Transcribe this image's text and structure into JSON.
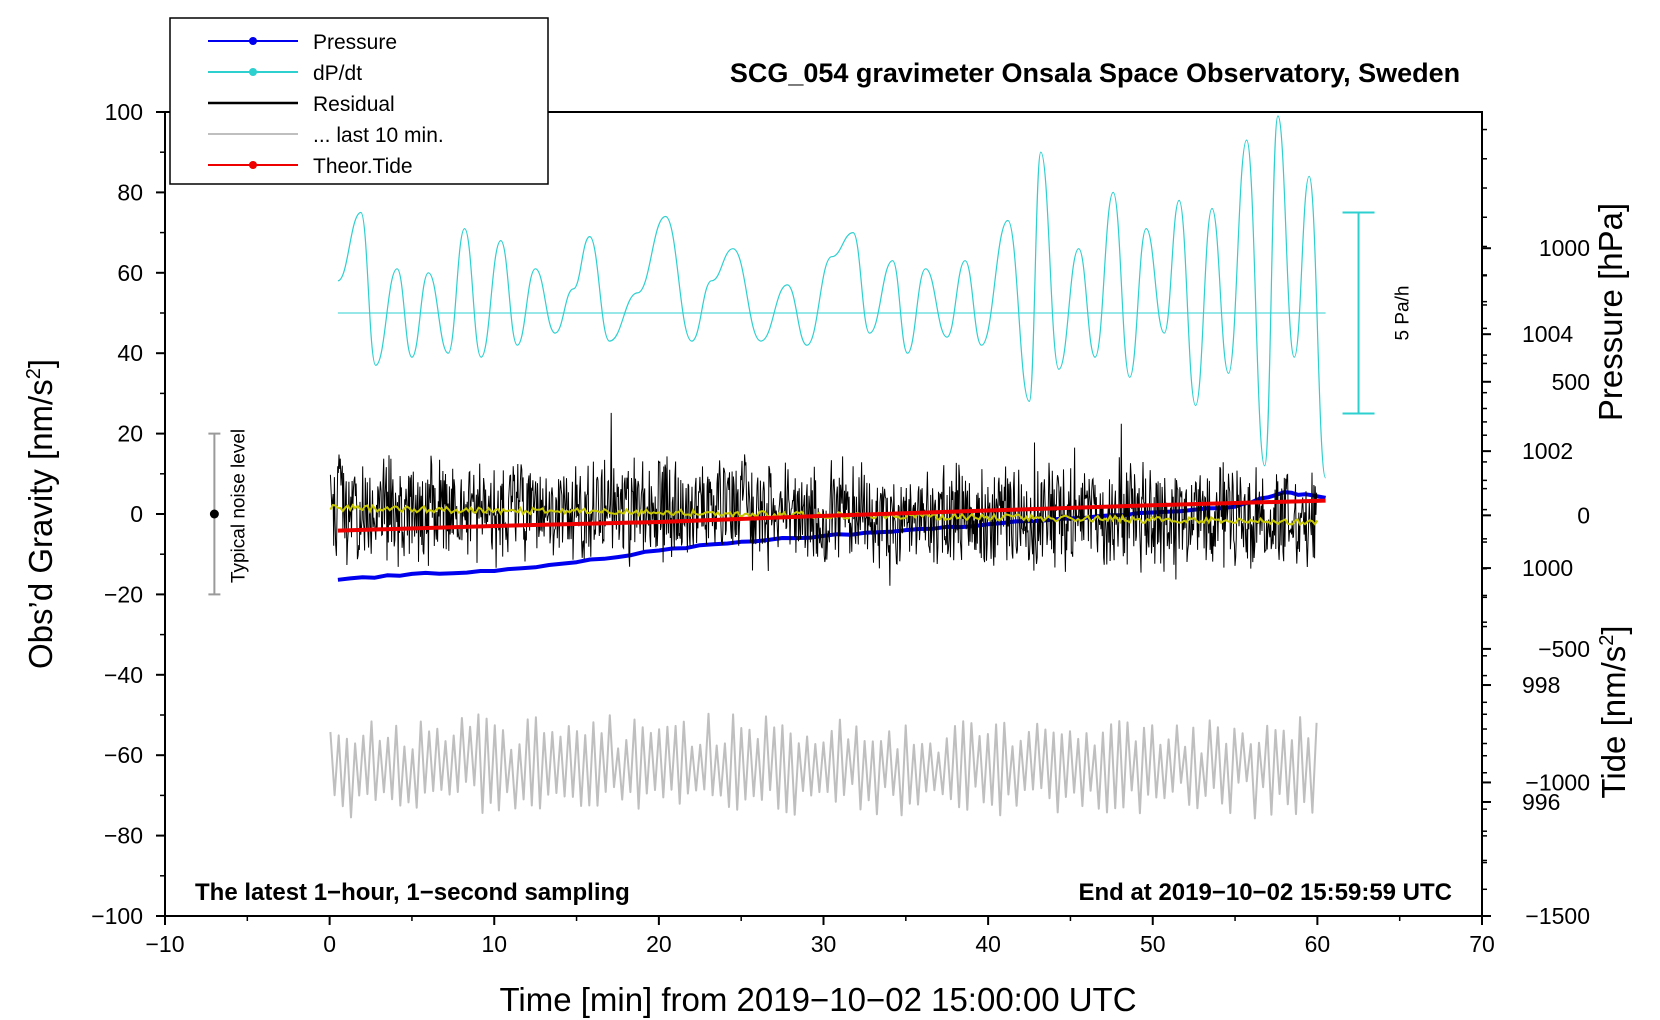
{
  "chart_data": {
    "type": "line",
    "title": "SCG_054 gravimeter Onsala Space Observatory, Sweden",
    "xlabel": "Time [min] from 2019−10−02 15:00:00 UTC",
    "ylabel_left_main": "Obs’d Gravity [nm/s",
    "ylabel_left_sup": "2",
    "ylabel_left_end": "]",
    "ylabel_right_pressure": "Pressure [hPa]",
    "ylabel_right_tide_main": "Tide [nm/s",
    "ylabel_right_tide_sup": "2",
    "ylabel_right_tide_end": "]",
    "xlim": [
      -10,
      70
    ],
    "ylim_gravity": [
      -100,
      100
    ],
    "ylim_pressure": [
      994.05,
      1007.8
    ],
    "ylim_tide": [
      -1500,
      1510
    ],
    "x_ticks": [
      -10,
      0,
      10,
      20,
      30,
      40,
      50,
      60,
      70
    ],
    "x_tick_labels": [
      "−10",
      "0",
      "10",
      "20",
      "30",
      "40",
      "50",
      "60",
      "70"
    ],
    "y_ticks_gravity": [
      -100,
      -80,
      -60,
      -40,
      -20,
      0,
      20,
      40,
      60,
      80,
      100
    ],
    "y_tick_labels_gravity": [
      "−100",
      "−80",
      "−60",
      "−40",
      "−20",
      "0",
      "20",
      "40",
      "60",
      "80",
      "100"
    ],
    "y_ticks_pressure": [
      996,
      998,
      1000,
      1002,
      1004
    ],
    "y_tick_labels_pressure": [
      "996",
      "998",
      "1000",
      "1002",
      "1004"
    ],
    "y_ticks_tide": [
      -1500,
      -1000,
      -500,
      0,
      500,
      1000
    ],
    "y_tick_labels_tide": [
      "−1500",
      "−1000",
      "−500",
      "0",
      "500",
      "1000"
    ],
    "series": [
      {
        "name": "Pressure",
        "color": "#0000ee",
        "unit": "hPa",
        "x": [
          0.5,
          5,
          10,
          15,
          20,
          25,
          30,
          35,
          40,
          45,
          50,
          55,
          58,
          60.5
        ],
        "values": [
          999.8,
          999.9,
          999.95,
          1000.1,
          1000.3,
          1000.45,
          1000.55,
          1000.65,
          1000.75,
          1000.85,
          1000.95,
          1001.05,
          1001.3,
          1001.2
        ]
      },
      {
        "name": "dP/dt",
        "color": "#2ecfcf",
        "unit": "gravity-axis units (baseline 50, scale bar 5 Pa/h)",
        "x": [
          0.5,
          1.9,
          2.8,
          4.1,
          5.0,
          6.0,
          7.2,
          8.2,
          9.2,
          10.4,
          11.4,
          12.5,
          13.7,
          14.8,
          15.8,
          17.0,
          18.7,
          20.4,
          22.0,
          23.2,
          24.5,
          26.2,
          27.8,
          29.0,
          30.5,
          31.8,
          32.8,
          34.2,
          35.1,
          36.2,
          37.5,
          38.6,
          39.6,
          41.2,
          42.5,
          43.2,
          44.3,
          45.5,
          46.5,
          47.6,
          48.6,
          49.6,
          50.7,
          51.6,
          52.6,
          53.6,
          54.6,
          55.7,
          56.8,
          57.6,
          58.6,
          59.5,
          60.5
        ],
        "values": [
          58,
          75,
          37,
          61,
          39,
          60,
          40,
          71,
          39,
          68,
          42,
          61,
          45,
          56,
          69,
          43,
          55,
          74,
          43,
          58,
          66,
          43,
          57,
          42,
          64,
          70,
          45,
          63,
          40,
          61,
          44,
          63,
          42,
          73,
          28,
          90,
          36,
          66,
          39,
          80,
          34,
          71,
          45,
          78,
          27,
          76,
          35,
          93,
          12,
          99,
          39,
          84,
          9
        ]
      },
      {
        "name": "Residual",
        "color": "#000000",
        "unit": "nm/s2",
        "noise_amplitude": 13,
        "mean_start": 1.5,
        "mean_end": -2
      },
      {
        "name": "... last 10 min.",
        "color": "#bfbfbf",
        "unit": "nm/s2",
        "mean": -63,
        "oscillation_amplitude": 8,
        "min": -79,
        "max": -44
      },
      {
        "name": "Theor.Tide",
        "color": "#ee0000",
        "unit": "nm/s2",
        "x": [
          0.5,
          10,
          20,
          30,
          40,
          50,
          60.5
        ],
        "values": [
          -57,
          -40,
          -25,
          -2,
          18,
          38,
          55
        ]
      }
    ],
    "legend": [
      {
        "label": "Pressure",
        "color": "#0000ee",
        "marker": true
      },
      {
        "label": "dP/dt",
        "color": "#2ecfcf",
        "marker": true
      },
      {
        "label": "Residual",
        "color": "#000000",
        "marker": false
      },
      {
        "label": "... last 10 min.",
        "color": "#bfbfbf",
        "marker": false
      },
      {
        "label": "Theor.Tide",
        "color": "#ee0000",
        "marker": true
      }
    ],
    "legend_position": "top-left",
    "annotations": {
      "noise_level": "Typical noise level",
      "noise_level_range": [
        -20,
        20
      ],
      "noise_level_center": 0,
      "pa_scale": "5 Pa/h",
      "pa_scale_range": [
        25,
        75
      ],
      "bottom_left": "The latest 1−hour, 1−second sampling",
      "bottom_right": "End at 2019−10−02 15:59:59 UTC"
    }
  }
}
